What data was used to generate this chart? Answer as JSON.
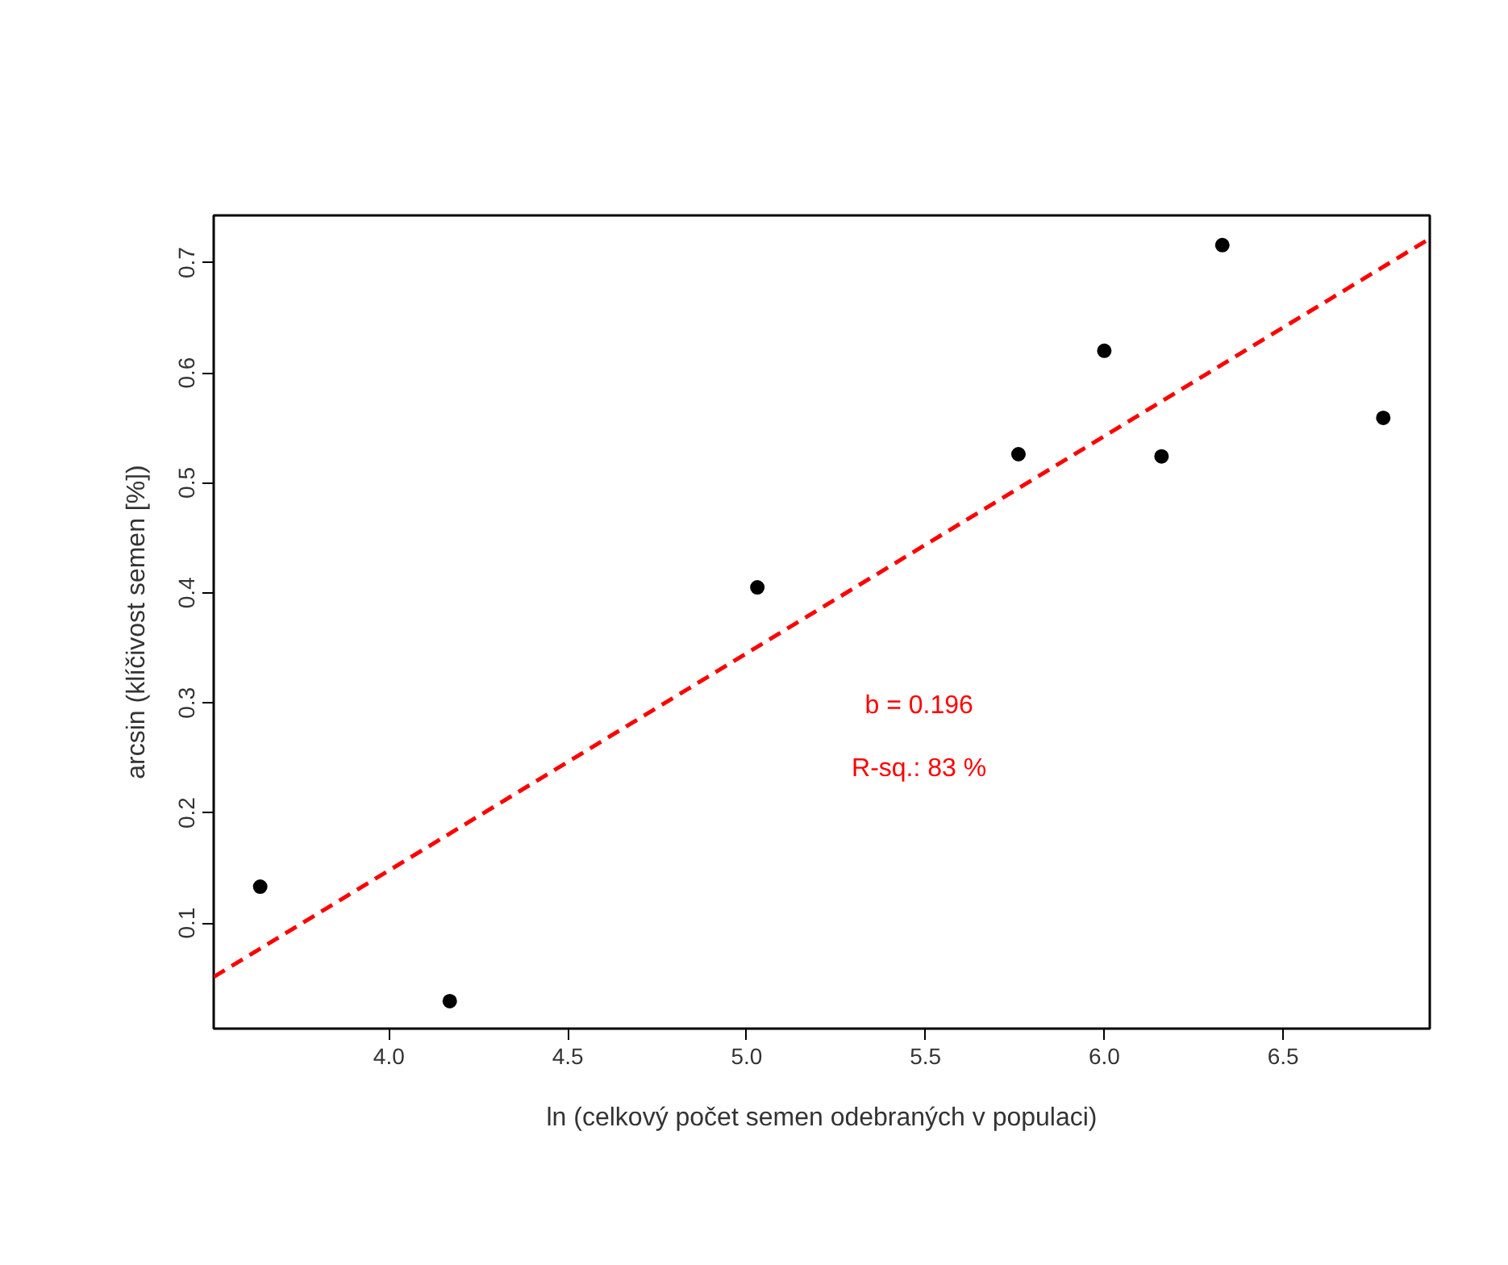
{
  "chart_data": {
    "type": "scatter",
    "xlabel": "ln (celkový počet semen odebraných v populaci)",
    "ylabel": "arcsin (klíčivost semen [%])",
    "xlim": [
      3.51,
      6.91
    ],
    "xticks": [
      {
        "value": 4.0,
        "label": "4.0"
      },
      {
        "value": 4.5,
        "label": "4.5"
      },
      {
        "value": 5.0,
        "label": "5.0"
      },
      {
        "value": 5.5,
        "label": "5.5"
      },
      {
        "value": 6.0,
        "label": "6.0"
      },
      {
        "value": 6.5,
        "label": "6.5"
      }
    ],
    "ylim": [
      0.004,
      0.743
    ],
    "yticks": [
      0.1,
      0.2,
      0.3,
      0.4,
      0.5,
      0.6,
      0.7
    ],
    "marker": "circle",
    "grid": false,
    "series": [
      {
        "color": "#000000",
        "x": [
          3.64,
          4.17,
          5.03,
          5.76,
          6.0,
          6.16,
          6.33,
          6.78
        ],
        "values": [
          0.133,
          0.029,
          0.405,
          0.526,
          0.62,
          0.524,
          0.716,
          0.559
        ]
      },
      {
        "type": "line",
        "color": "#ff0000",
        "line_style": "dashed",
        "marker": "none",
        "x": [
          3.51,
          6.91
        ],
        "values": [
          0.051,
          0.722
        ]
      }
    ],
    "annotations": [
      "b = 0.196",
      "R-sq.: 83 %"
    ]
  }
}
